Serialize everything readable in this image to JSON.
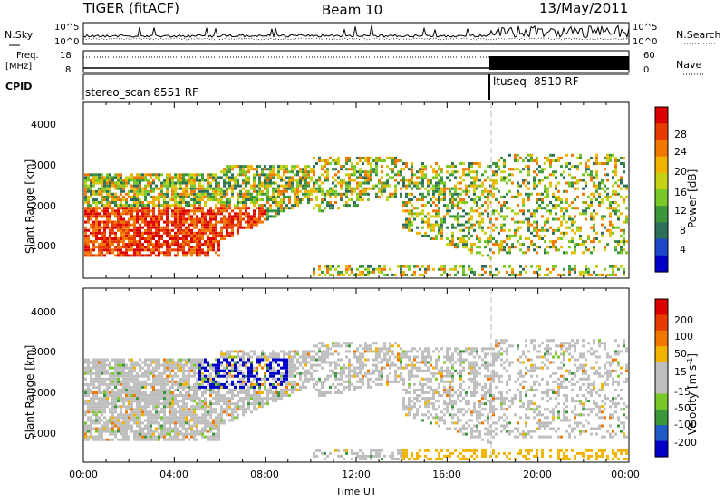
{
  "header": {
    "title": "TIGER (fitACF)",
    "beam": "Beam 10",
    "date": "13/May/2011"
  },
  "strip": {
    "nsky_label": "N.Sky",
    "nsky_ticks": [
      "10^5",
      "10^0"
    ],
    "nsearch_label": "N.Search",
    "nsearch_ticks": [
      "10^5",
      "10^0"
    ],
    "freq_label": [
      "Freq.",
      "[MHz]"
    ],
    "freq_ticks": [
      "18",
      "8"
    ],
    "nave_label": "Nave",
    "nave_ticks": [
      "60",
      "0"
    ],
    "cpid_label": "CPID",
    "cpid_1": "stereo_scan 8551 RF",
    "cpid_2": "ltuseq -8510 RF"
  },
  "chart_data": [
    {
      "type": "heatmap",
      "name": "power",
      "ylabel": "Slant Range [km]",
      "yticks": [
        "4000",
        "3000",
        "2000",
        "1000"
      ],
      "ylim": [
        180,
        4600
      ],
      "colorbar_label": "Power [dB]",
      "colorbar_ticks": [
        "28",
        "24",
        "20",
        "16",
        "12",
        "8",
        "4"
      ],
      "colorbar_colors": [
        "#0000c8",
        "#1e46c8",
        "#2d6f5a",
        "#3c963c",
        "#78c828",
        "#c8d214",
        "#f0b400",
        "#f07800",
        "#e63c00",
        "#dc0000"
      ],
      "xlim_hours": [
        0,
        24
      ],
      "vertical_marker_hour": 18
    },
    {
      "type": "heatmap",
      "name": "velocity",
      "ylabel": "Slant Range [km]",
      "yticks": [
        "4000",
        "3000",
        "2000",
        "1000"
      ],
      "ylim": [
        180,
        4600
      ],
      "colorbar_label": "Velocity [m s",
      "colorbar_label_sup": "-1",
      "colorbar_ticks": [
        "200",
        "100",
        "50",
        "15",
        "-15",
        "-50",
        "-100",
        "-200"
      ],
      "colorbar_colors": [
        "#0000c8",
        "#1e5ac8",
        "#3c963c",
        "#78c828",
        "#bebebe",
        "#bebebe",
        "#f0b400",
        "#f07800",
        "#e63c00",
        "#dc0000"
      ],
      "xlim_hours": [
        0,
        24
      ],
      "vertical_marker_hour": 18
    }
  ],
  "xaxis": {
    "ticks": [
      "00:00",
      "04:00",
      "08:00",
      "12:00",
      "16:00",
      "20:00",
      "00:00"
    ],
    "label": "Time UT"
  }
}
